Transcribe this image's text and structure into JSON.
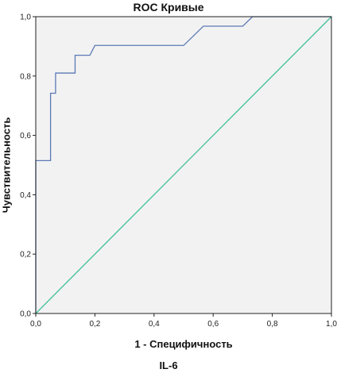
{
  "chart_data": {
    "type": "line",
    "title": "ROC Кривые",
    "xlabel": "1 - Специфичность",
    "ylabel": "Чувствительность",
    "footer": "IL-6",
    "xlim": [
      0,
      1
    ],
    "ylim": [
      0,
      1
    ],
    "x_ticks": [
      "0,0",
      "0,2",
      "0,4",
      "0,6",
      "0,8",
      "1,0"
    ],
    "y_ticks": [
      "0,0",
      "0,2",
      "0,4",
      "0,6",
      "0,8",
      "1,0"
    ],
    "grid": false,
    "series": [
      {
        "color": "#5b79b6",
        "points": [
          [
            0.0,
            0.0
          ],
          [
            0.0,
            0.515
          ],
          [
            0.05,
            0.515
          ],
          [
            0.05,
            0.742
          ],
          [
            0.067,
            0.742
          ],
          [
            0.067,
            0.81
          ],
          [
            0.133,
            0.81
          ],
          [
            0.133,
            0.87
          ],
          [
            0.183,
            0.87
          ],
          [
            0.2,
            0.903
          ],
          [
            0.5,
            0.903
          ],
          [
            0.567,
            0.968
          ],
          [
            0.7,
            0.968
          ],
          [
            0.733,
            1.0
          ],
          [
            1.0,
            1.0
          ]
        ]
      },
      {
        "color": "#3fbf9a",
        "points": [
          [
            0.0,
            0.0
          ],
          [
            1.0,
            1.0
          ]
        ]
      }
    ],
    "colors": {
      "plot_background": "#f2f2f2",
      "axis": "#222222"
    }
  }
}
